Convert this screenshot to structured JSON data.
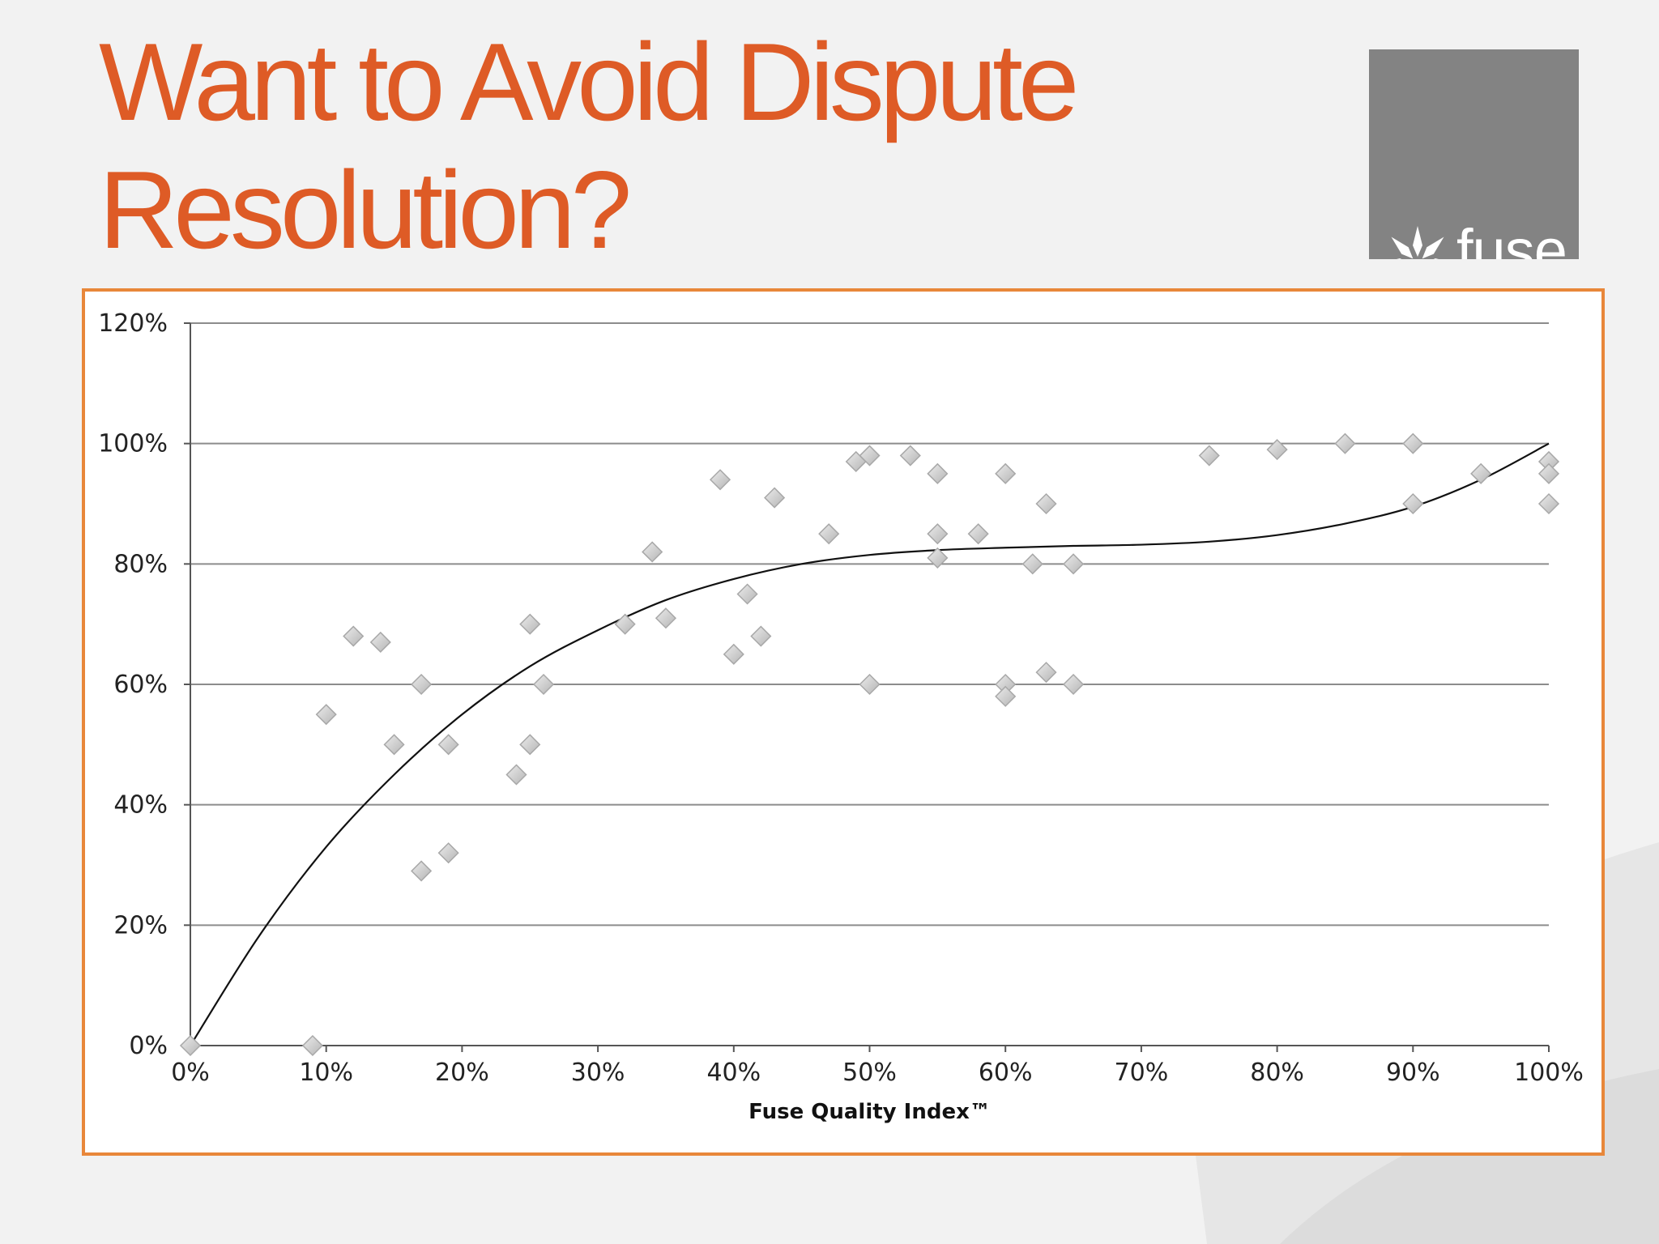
{
  "slide": {
    "title": "Want to Avoid Dispute Resolution?",
    "title_color": "#de5b26",
    "logo": {
      "text": "fuse",
      "icon": "fuse-flower-icon",
      "background": "#838383"
    }
  },
  "chart_data": {
    "type": "scatter",
    "title": "",
    "xlabel": "Fuse Quality Index™",
    "ylabel": "",
    "xlim": [
      0,
      100
    ],
    "ylim": [
      0,
      120
    ],
    "x_ticks": [
      "0%",
      "10%",
      "20%",
      "30%",
      "40%",
      "50%",
      "60%",
      "70%",
      "80%",
      "90%",
      "100%"
    ],
    "y_ticks": [
      "0%",
      "20%",
      "40%",
      "60%",
      "80%",
      "100%",
      "120%"
    ],
    "grid": true,
    "frame_color": "#e8873a",
    "marker": "diamond",
    "points": [
      [
        0,
        0
      ],
      [
        9,
        0
      ],
      [
        10,
        55
      ],
      [
        12,
        68
      ],
      [
        14,
        67
      ],
      [
        15,
        50
      ],
      [
        17,
        60
      ],
      [
        17,
        29
      ],
      [
        19,
        50
      ],
      [
        19,
        32
      ],
      [
        24,
        45
      ],
      [
        25,
        70
      ],
      [
        25,
        50
      ],
      [
        26,
        60
      ],
      [
        32,
        70
      ],
      [
        34,
        82
      ],
      [
        35,
        71
      ],
      [
        39,
        94
      ],
      [
        40,
        65
      ],
      [
        41,
        75
      ],
      [
        42,
        68
      ],
      [
        43,
        91
      ],
      [
        47,
        85
      ],
      [
        49,
        97
      ],
      [
        50,
        98
      ],
      [
        50,
        60
      ],
      [
        53,
        98
      ],
      [
        55,
        95
      ],
      [
        55,
        85
      ],
      [
        55,
        81
      ],
      [
        58,
        85
      ],
      [
        60,
        95
      ],
      [
        60,
        60
      ],
      [
        60,
        58
      ],
      [
        62,
        80
      ],
      [
        63,
        90
      ],
      [
        63,
        62
      ],
      [
        65,
        80
      ],
      [
        65,
        60
      ],
      [
        75,
        98
      ],
      [
        80,
        99
      ],
      [
        85,
        100
      ],
      [
        90,
        100
      ],
      [
        90,
        90
      ],
      [
        95,
        95
      ],
      [
        100,
        97
      ],
      [
        100,
        95
      ],
      [
        100,
        90
      ]
    ],
    "trendline": {
      "type": "polynomial",
      "points": [
        [
          0,
          0
        ],
        [
          5,
          18
        ],
        [
          10,
          33
        ],
        [
          15,
          45
        ],
        [
          20,
          55
        ],
        [
          25,
          63
        ],
        [
          30,
          69
        ],
        [
          35,
          74
        ],
        [
          40,
          77.5
        ],
        [
          45,
          80
        ],
        [
          50,
          81.5
        ],
        [
          55,
          82.3
        ],
        [
          60,
          82.7
        ],
        [
          65,
          83
        ],
        [
          70,
          83.2
        ],
        [
          75,
          83.7
        ],
        [
          80,
          84.8
        ],
        [
          85,
          86.7
        ],
        [
          90,
          89.5
        ],
        [
          95,
          94
        ],
        [
          100,
          100
        ]
      ]
    }
  }
}
